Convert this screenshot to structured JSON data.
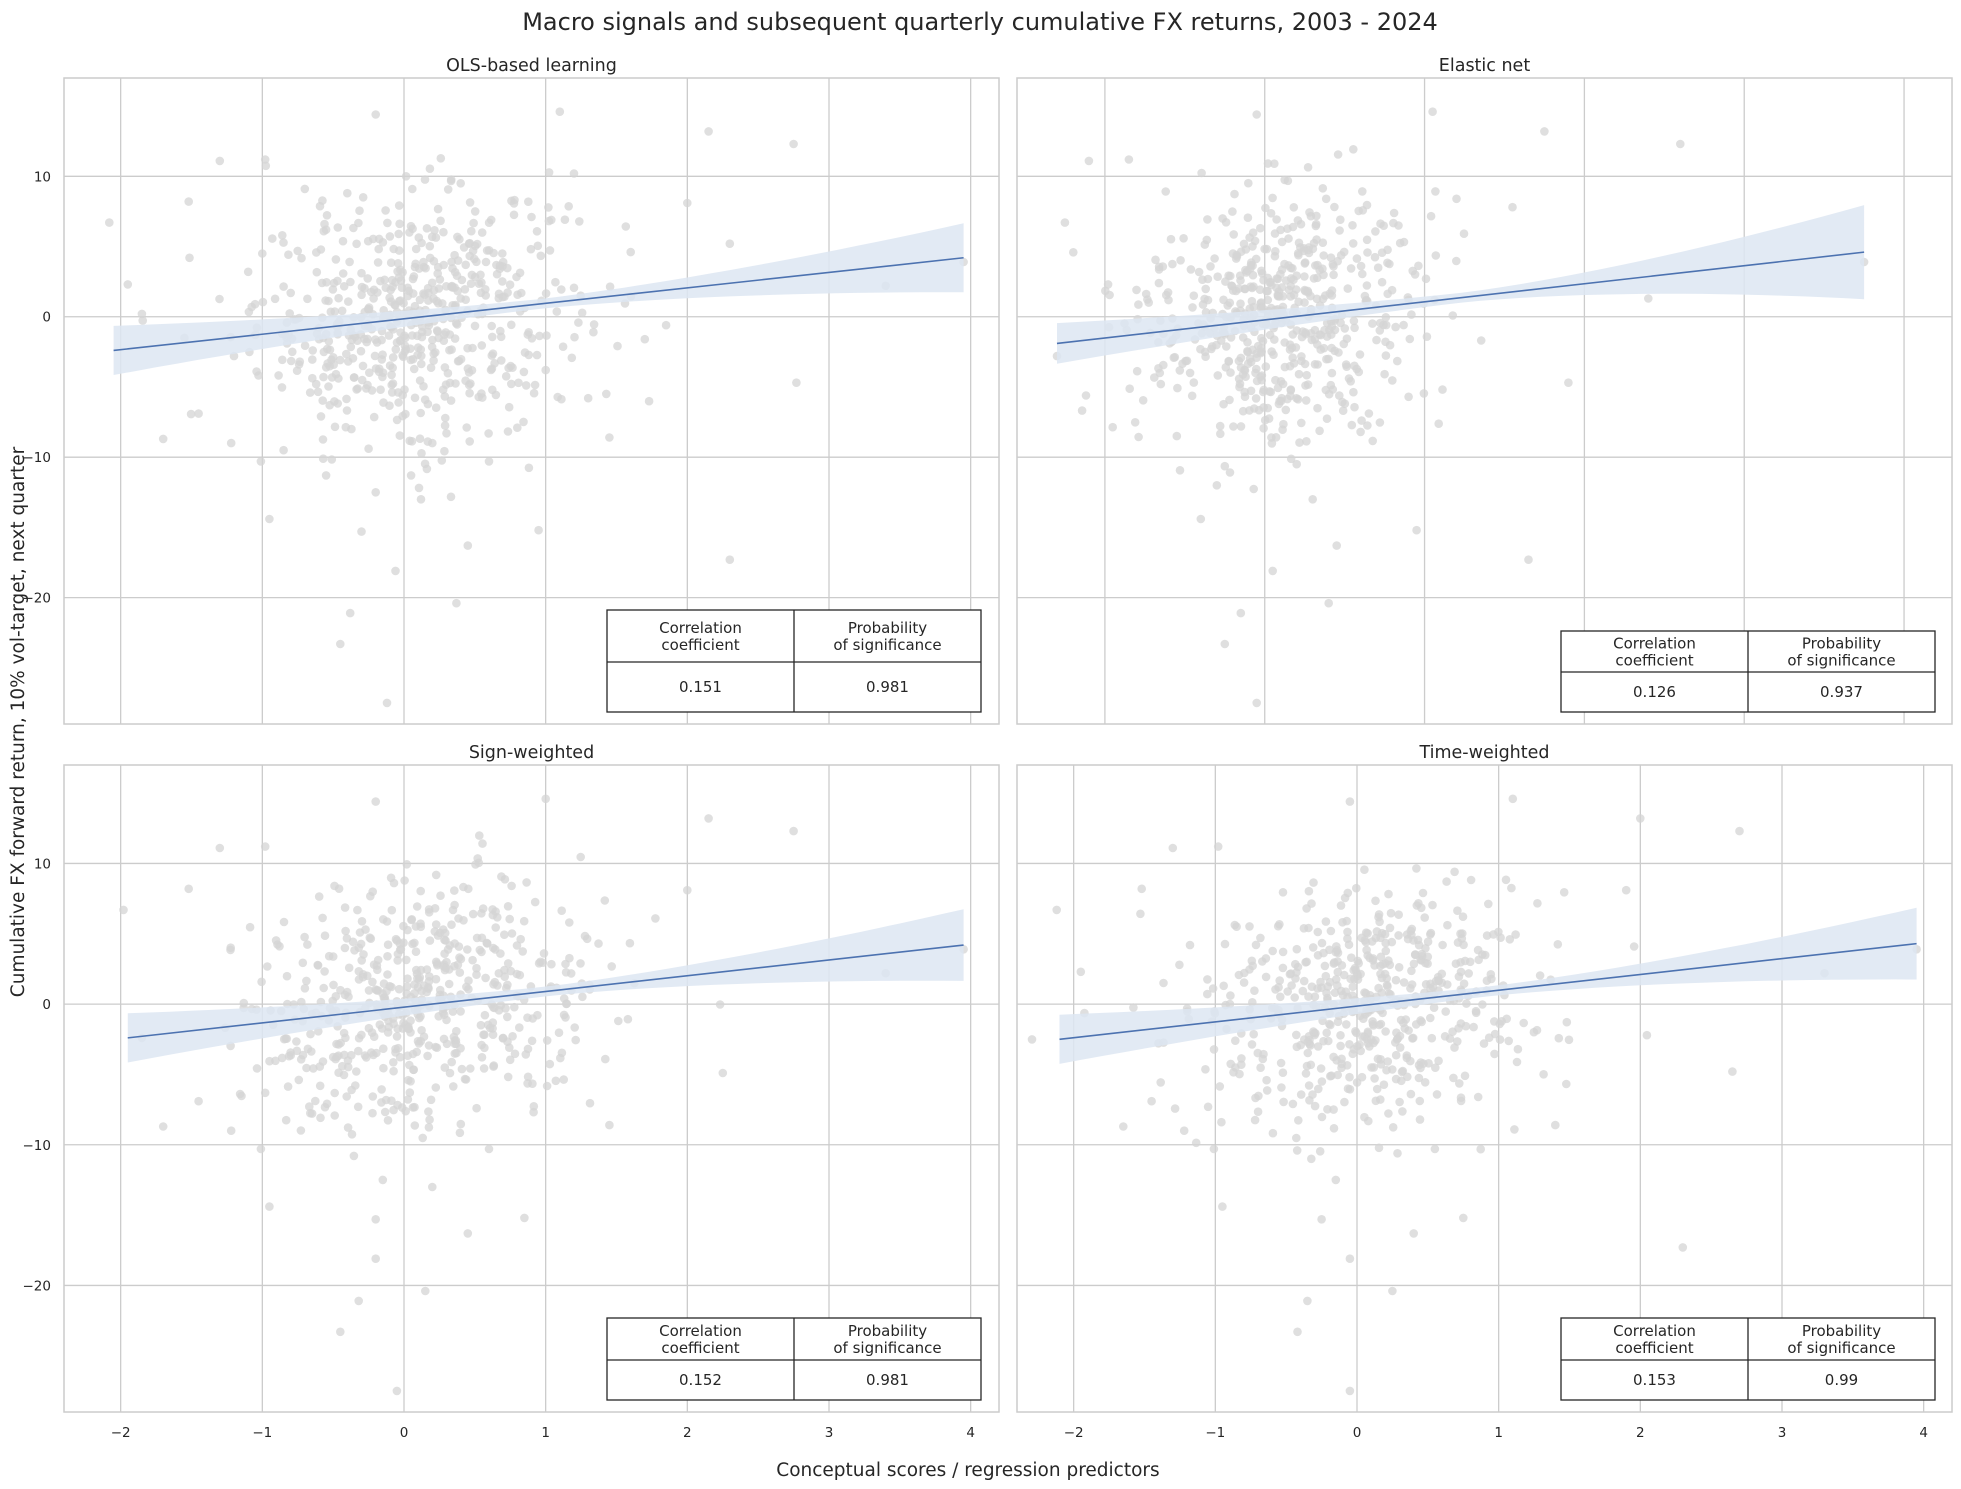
{
  "figure": {
    "title": "Macro signals and subsequent quarterly cumulative FX returns, 2003 - 2024",
    "xlabel": "Conceptual scores / regression predictors",
    "ylabel": "Cumulative FX forward return, 10% vol-target, next quarter"
  },
  "colors": {
    "grid": "#cccccc",
    "frame": "#cccccc",
    "point": "#d4d4d4",
    "line": "#4c72b0",
    "band": "#dde6f2",
    "background": "#ffffff"
  },
  "chart_data": [
    {
      "type": "scatter",
      "title": "OLS-based learning",
      "xlim": [
        -2.4,
        4.2
      ],
      "ylim": [
        -29,
        17
      ],
      "xticks": [
        -2,
        -1,
        0,
        1,
        2,
        3,
        4
      ],
      "yticks": [
        -20,
        -10,
        0,
        10
      ],
      "grid": true,
      "regression": {
        "x": [
          -2.05,
          3.95
        ],
        "y": [
          -2.4,
          4.2
        ],
        "ci_half_width_low": 1.4,
        "ci_half_width_high": 2.1
      },
      "table": {
        "headers": [
          "Correlation\ncoefficient",
          "Probability\nof significance"
        ],
        "values": [
          "0.151",
          "0.981"
        ]
      },
      "table_placement": "bottom-right",
      "points": [
        [
          -2.08,
          6.7
        ],
        [
          -1.95,
          2.3
        ],
        [
          -1.7,
          -8.7
        ],
        [
          -1.52,
          8.2
        ],
        [
          -1.45,
          -6.9
        ],
        [
          -1.3,
          11.1
        ],
        [
          -1.22,
          -9
        ],
        [
          -1.1,
          3.2
        ],
        [
          -1.01,
          -10.3
        ],
        [
          -0.98,
          11.2
        ],
        [
          -0.95,
          -14.4
        ],
        [
          -0.62,
          -4.8
        ],
        [
          -0.55,
          6.2
        ],
        [
          -0.45,
          -23.3
        ],
        [
          -0.38,
          -21.1
        ],
        [
          -0.3,
          -15.3
        ],
        [
          -0.2,
          -12.5
        ],
        [
          -0.12,
          -27.5
        ],
        [
          -0.06,
          -18.1
        ],
        [
          -0.2,
          14.4
        ],
        [
          0.12,
          -13
        ],
        [
          0.2,
          -9
        ],
        [
          0.37,
          -20.4
        ],
        [
          0.45,
          -16.3
        ],
        [
          0.6,
          -10.3
        ],
        [
          0.95,
          -15.2
        ],
        [
          1.1,
          14.6
        ],
        [
          1.45,
          -8.6
        ],
        [
          1.85,
          -0.6
        ],
        [
          2.15,
          13.2
        ],
        [
          2.3,
          -17.3
        ],
        [
          2.75,
          12.3
        ],
        [
          2.77,
          -4.7
        ],
        [
          3.4,
          2.2
        ],
        [
          3.95,
          3.9
        ],
        [
          1.7,
          -1.6
        ],
        [
          2.0,
          8.1
        ],
        [
          1.2,
          10.2
        ],
        [
          0.9,
          7.1
        ],
        [
          0.4,
          9.5
        ],
        [
          -0.4,
          8.8
        ],
        [
          -0.7,
          9.1
        ],
        [
          -0.85,
          -9.5
        ],
        [
          0.05,
          -11.3
        ],
        [
          -0.55,
          -11.3
        ],
        [
          -0.25,
          -9.4
        ],
        [
          0.3,
          -8.3
        ],
        [
          0.8,
          -7.9
        ],
        [
          1.3,
          -5.8
        ],
        [
          -1.2,
          -2.8
        ],
        [
          -1.55,
          -1.5
        ],
        [
          -1.85,
          0.2
        ],
        [
          -1.0,
          4.5
        ],
        [
          -0.8,
          1.7
        ],
        [
          -0.6,
          -0.8
        ],
        [
          -0.3,
          3.1
        ],
        [
          0.1,
          -2.2
        ],
        [
          0.4,
          1.3
        ],
        [
          0.7,
          3.9
        ],
        [
          1.0,
          -3.8
        ],
        [
          1.6,
          4.6
        ],
        [
          2.3,
          5.2
        ]
      ],
      "points_note": "remaining cloud points generated by script"
    },
    {
      "type": "scatter",
      "title": "Elastic net",
      "xlim": [
        -1.55,
        4.3
      ],
      "ylim": [
        -29,
        17
      ],
      "xticks": [
        -2,
        -1,
        0,
        1,
        2,
        3,
        4
      ],
      "yticks": [
        -20,
        -10,
        0,
        10
      ],
      "grid": true,
      "regression": {
        "x": [
          -1.3,
          3.75
        ],
        "y": [
          -1.9,
          4.6
        ],
        "ci_half_width_low": 1.1,
        "ci_half_width_high": 3.0
      },
      "table": {
        "headers": [
          "Correlation\ncoefficient",
          "Probability\nof significance"
        ],
        "values": [
          "0.126",
          "0.937"
        ]
      },
      "table_placement": "bottom-right",
      "points": [
        [
          -1.3,
          -2.8
        ],
        [
          -1.25,
          6.7
        ],
        [
          -1.1,
          11.1
        ],
        [
          -0.98,
          2.3
        ],
        [
          -0.85,
          11.2
        ],
        [
          -0.65,
          -4.8
        ],
        [
          -0.25,
          -23.3
        ],
        [
          -0.15,
          -21.1
        ],
        [
          -0.05,
          -27.5
        ],
        [
          0.05,
          -18.1
        ],
        [
          -0.05,
          14.4
        ],
        [
          0.3,
          -13
        ],
        [
          0.45,
          -16.3
        ],
        [
          0.4,
          -20.4
        ],
        [
          0.95,
          -15.2
        ],
        [
          1.05,
          14.6
        ],
        [
          1.65,
          -17.3
        ],
        [
          1.75,
          13.2
        ],
        [
          2.6,
          12.3
        ],
        [
          1.9,
          -4.7
        ],
        [
          2.4,
          1.3
        ],
        [
          3.75,
          3.9
        ],
        [
          1.55,
          7.8
        ],
        [
          1.2,
          8.4
        ],
        [
          -0.4,
          -14.4
        ],
        [
          -0.3,
          -12
        ],
        [
          0.2,
          -10.5
        ],
        [
          -0.55,
          -8.5
        ],
        [
          0.6,
          -8.2
        ],
        [
          0.9,
          -5.7
        ]
      ]
    },
    {
      "type": "scatter",
      "title": "Sign-weighted",
      "xlim": [
        -2.4,
        4.2
      ],
      "ylim": [
        -29,
        17
      ],
      "xticks": [
        -2,
        -1,
        0,
        1,
        2,
        3,
        4
      ],
      "yticks": [
        -20,
        -10,
        0,
        10
      ],
      "grid": true,
      "regression": {
        "x": [
          -1.95,
          3.95
        ],
        "y": [
          -2.4,
          4.2
        ],
        "ci_half_width_low": 1.4,
        "ci_half_width_high": 2.2
      },
      "table": {
        "headers": [
          "Correlation\ncoefficient",
          "Probability\nof significance"
        ],
        "values": [
          "0.152",
          "0.981"
        ]
      },
      "table_placement": "bottom-right",
      "points": [
        [
          -1.98,
          6.7
        ],
        [
          -1.85,
          -2.4
        ],
        [
          -1.7,
          -8.7
        ],
        [
          -1.52,
          8.2
        ],
        [
          -1.45,
          -6.9
        ],
        [
          -1.3,
          11.1
        ],
        [
          -1.22,
          -9
        ],
        [
          -1.01,
          -10.3
        ],
        [
          -0.98,
          11.2
        ],
        [
          -0.95,
          -14.4
        ],
        [
          -0.45,
          -23.3
        ],
        [
          -0.32,
          -21.1
        ],
        [
          -0.2,
          -15.3
        ],
        [
          -0.15,
          -12.5
        ],
        [
          -0.05,
          -27.5
        ],
        [
          -0.2,
          -18.1
        ],
        [
          -0.2,
          14.4
        ],
        [
          0.2,
          -13
        ],
        [
          0.15,
          -20.4
        ],
        [
          0.45,
          -16.3
        ],
        [
          0.6,
          -10.3
        ],
        [
          0.85,
          -15.2
        ],
        [
          1.0,
          14.6
        ],
        [
          1.45,
          -8.6
        ],
        [
          2.15,
          13.2
        ],
        [
          2.25,
          -4.9
        ],
        [
          2.75,
          12.3
        ],
        [
          3.4,
          2.2
        ],
        [
          3.95,
          3.9
        ],
        [
          2.0,
          8.1
        ]
      ]
    },
    {
      "type": "scatter",
      "title": "Time-weighted",
      "xlim": [
        -2.4,
        4.2
      ],
      "ylim": [
        -29,
        17
      ],
      "xticks": [
        -2,
        -1,
        0,
        1,
        2,
        3,
        4
      ],
      "yticks": [
        -20,
        -10,
        0,
        10
      ],
      "grid": true,
      "regression": {
        "x": [
          -2.1,
          3.95
        ],
        "y": [
          -2.5,
          4.3
        ],
        "ci_half_width_low": 1.4,
        "ci_half_width_high": 2.2
      },
      "table": {
        "headers": [
          "Correlation\ncoefficient",
          "Probability\nof significance"
        ],
        "values": [
          "0.153",
          "0.99"
        ]
      },
      "table_placement": "bottom-right",
      "points": [
        [
          -2.12,
          6.7
        ],
        [
          -1.95,
          2.3
        ],
        [
          -1.65,
          -8.7
        ],
        [
          -1.52,
          8.2
        ],
        [
          -1.45,
          -6.9
        ],
        [
          -1.3,
          11.1
        ],
        [
          -1.22,
          -9
        ],
        [
          -1.01,
          -10.3
        ],
        [
          -0.98,
          11.2
        ],
        [
          -0.95,
          -14.4
        ],
        [
          -0.42,
          -23.3
        ],
        [
          -0.35,
          -21.1
        ],
        [
          -0.25,
          -15.3
        ],
        [
          -0.15,
          -12.5
        ],
        [
          -0.05,
          -27.5
        ],
        [
          -0.05,
          -18.1
        ],
        [
          -0.05,
          14.4
        ],
        [
          0.25,
          -20.4
        ],
        [
          0.4,
          -16.3
        ],
        [
          0.55,
          -10.3
        ],
        [
          0.75,
          -15.2
        ],
        [
          1.1,
          14.6
        ],
        [
          1.4,
          -8.6
        ],
        [
          2.0,
          13.2
        ],
        [
          2.3,
          -17.3
        ],
        [
          2.7,
          12.3
        ],
        [
          2.65,
          -4.8
        ],
        [
          3.3,
          2.2
        ],
        [
          3.95,
          3.9
        ],
        [
          1.9,
          8.1
        ]
      ]
    }
  ]
}
